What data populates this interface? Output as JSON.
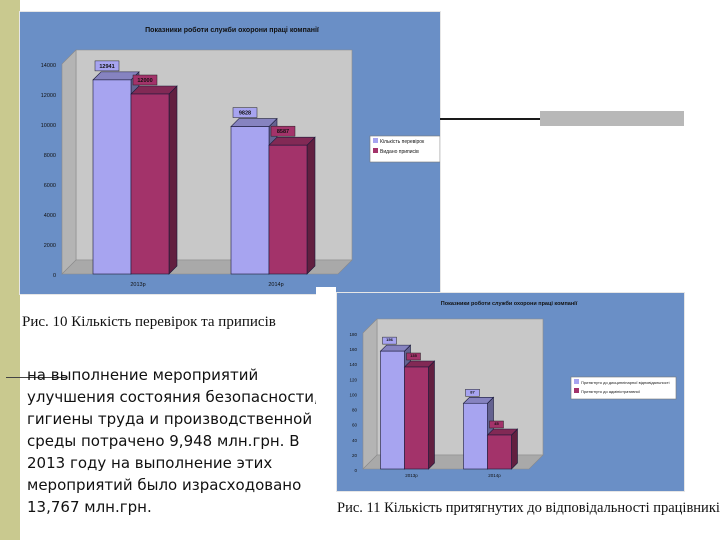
{
  "body_text": "на выполнение мероприятий улучшения состояния безопасности, гигиены труда и производственной среды потрачено 9,948 млн.грн. В 2013 году на выполнение этих мероприятий было израсходовано 13,767 млн.грн.",
  "captions": {
    "fig10": "Рис. 10 Кількість перевірок та приписів",
    "fig11": "Рис. 11 Кількість притягнутих до відповідальності працівників"
  },
  "colors": {
    "plot_bg": "#6f93c9",
    "chart_bg": "#6a8fc6",
    "wall": "#c8c8c8",
    "series1": "#a7a4f0",
    "series2": "#a3336a",
    "left_bar": "#c9c98f"
  },
  "chart_data": [
    {
      "type": "bar",
      "title": "Показники роботи служби охорони праці компанії",
      "categories": [
        "2013р",
        "2014р"
      ],
      "series": [
        {
          "name": "Кількість перевірок",
          "values": [
            12941,
            9828
          ]
        },
        {
          "name": "Видано приписів",
          "values": [
            12000,
            8587
          ]
        }
      ],
      "data_labels": [
        [
          "12941",
          "9828"
        ],
        [
          "12000",
          "8587"
        ]
      ],
      "ylim": [
        0,
        14000
      ],
      "yticks": [
        0,
        2000,
        4000,
        6000,
        8000,
        10000,
        12000,
        14000
      ],
      "legend": "right",
      "grid": false
    },
    {
      "type": "bar",
      "title": "Показники роботи служби охорони праці компанії",
      "categories": [
        "2013р",
        "2014р"
      ],
      "series": [
        {
          "name": "Притягнуто до дисциплінарної відповідальності",
          "values": [
            156,
            87
          ]
        },
        {
          "name": "Притягнуто до адміністративної",
          "values": [
            135,
            45
          ]
        }
      ],
      "data_labels": [
        [
          "156",
          "87"
        ],
        [
          "135",
          "45"
        ]
      ],
      "ylim": [
        0,
        180
      ],
      "yticks": [
        0,
        20,
        40,
        60,
        80,
        100,
        120,
        140,
        160,
        180
      ],
      "legend": "right",
      "grid": false
    }
  ]
}
